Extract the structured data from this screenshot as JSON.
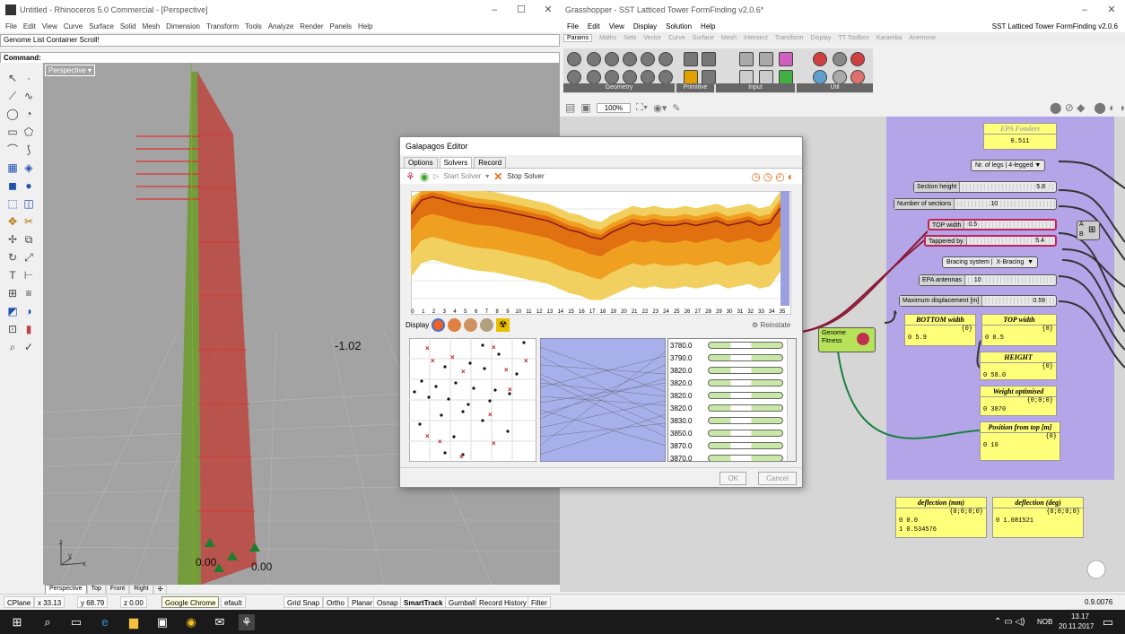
{
  "rhino": {
    "title": "Untitled - Rhinoceros 5.0 Commercial - [Perspective]",
    "menus": [
      "File",
      "Edit",
      "View",
      "Curve",
      "Surface",
      "Solid",
      "Mesh",
      "Dimension",
      "Transform",
      "Tools",
      "Analyze",
      "Render",
      "Panels",
      "Help"
    ],
    "history": "Genome List Container Scroll!",
    "command_label": "Command:",
    "viewport_label": "Perspective",
    "annotation": "-1.02",
    "dim1": "0.00",
    "dim2": "0.00",
    "vp_tabs": [
      "Perspective",
      "Top",
      "Front",
      "Right"
    ],
    "axis_z": "z",
    "axis_y": "y",
    "axis_x": "x"
  },
  "status": {
    "cplane": "CPlane",
    "x": "x 33.13",
    "y": "y 68.79",
    "z": "z 0.00",
    "tooltip": "Google Chrome",
    "layer": "efault",
    "items": [
      "Grid Snap",
      "Ortho",
      "Planar",
      "Osnap",
      "SmartTrack",
      "Gumball",
      "Record History",
      "Filter"
    ],
    "zoom": "0.9.0076"
  },
  "gh": {
    "title": "Grasshopper - SST Latticed Tower FormFinding v2.0.6*",
    "doc_name": "SST Latticed Tower FormFinding v2.0.6",
    "menus": [
      "File",
      "Edit",
      "View",
      "Display",
      "Solution",
      "Help"
    ],
    "tabs": [
      "Params",
      "Maths",
      "Sets",
      "Vector",
      "Curve",
      "Surface",
      "Mesh",
      "Intersect",
      "Transform",
      "Display",
      "TT Toolbox",
      "Karamba",
      "Anemone"
    ],
    "groups": [
      "Geometry",
      "Primitive",
      "Input",
      "Util"
    ],
    "zoom": "100%"
  },
  "nodes": {
    "epa_title": "EPA Fonders",
    "epa_value": "0.511",
    "legs_label": "Nr. of legs",
    "legs_value": "4-legged",
    "section_height": "Section height",
    "section_height_v": "5.8",
    "num_sections": "Number of sections",
    "num_sections_v": "10",
    "top_width": "TOP width",
    "top_width_v": "0.5",
    "tappered": "Tappered by",
    "tappered_v": "5.4",
    "bracing": "Bracing system",
    "bracing_v": "X-Bracing",
    "epa_antennas": "EPA antennas",
    "epa_antennas_v": "10",
    "max_disp": "Maximum displacement [m]",
    "max_disp_v": "0.59",
    "genome": "Genome",
    "fitness": "Fitness",
    "a": "A",
    "b": "B"
  },
  "panels": {
    "bottom_width": {
      "title": "BOTTOM width",
      "path": "{0}",
      "value": "0 5.9"
    },
    "top_width": {
      "title": "TOP width",
      "path": "{0}",
      "value": "0 0.5"
    },
    "height": {
      "title": "HEIGHT",
      "path": "{0}",
      "value": "0 58.0"
    },
    "weight": {
      "title": "Weight optimised",
      "path": "{0;0;0}",
      "value": "0 3870"
    },
    "position": {
      "title": "Position from top [m]",
      "path": "{0}",
      "value": "0 10"
    },
    "defl_mm": {
      "title": "deflection (mm)",
      "path": "{0;0;0;0}",
      "v1": "0 0.0",
      "v2": "1 0.534576"
    },
    "defl_deg": {
      "title": "deflection (deg)",
      "path": "{0;0;0;0}",
      "v1": "0 1.081521"
    }
  },
  "galapagos": {
    "title": "Galapagos Editor",
    "tabs": [
      "Options",
      "Solvers",
      "Record"
    ],
    "start": "Start Solver",
    "stop": "Stop Solver",
    "display": "Display",
    "reinstate": "Reinstate",
    "ok": "OK",
    "cancel": "Cancel",
    "x_ticks": [
      "0",
      "1",
      "2",
      "3",
      "4",
      "5",
      "6",
      "7",
      "8",
      "9",
      "10",
      "11",
      "12",
      "13",
      "14",
      "15",
      "16",
      "17",
      "18",
      "19",
      "20",
      "21",
      "22",
      "23",
      "24",
      "25",
      "26",
      "27",
      "28",
      "29",
      "30",
      "31",
      "32",
      "33",
      "34",
      "35"
    ],
    "fitness": [
      "3780.0",
      "3790.0",
      "3820.0",
      "3820.0",
      "3820.0",
      "3820.0",
      "3830.0",
      "3850.0",
      "3870.0",
      "3870.0"
    ]
  },
  "chart_data": {
    "type": "area",
    "x": [
      0,
      1,
      2,
      3,
      4,
      5,
      6,
      7,
      8,
      9,
      10,
      11,
      12,
      13,
      14,
      15,
      16,
      17,
      18,
      19,
      20,
      21,
      22,
      23,
      24,
      25,
      26,
      27,
      28,
      29,
      30,
      31,
      32,
      33,
      34,
      35
    ],
    "series": [
      {
        "values": [
          0.8,
          0.92,
          0.95,
          0.93,
          0.9,
          0.88,
          0.86,
          0.85,
          0.84,
          0.82,
          0.8,
          0.78,
          0.76,
          0.74,
          0.7,
          0.66,
          0.64,
          0.6,
          0.58,
          0.64,
          0.68,
          0.72,
          0.7,
          0.72,
          0.7,
          0.7,
          0.72,
          0.7,
          0.72,
          0.74,
          0.7,
          0.72,
          0.74,
          0.7,
          0.72,
          0.85
        ]
      }
    ]
  },
  "taskbar": {
    "lang": "NOB",
    "time": "13.17",
    "date": "20.11.2017"
  }
}
